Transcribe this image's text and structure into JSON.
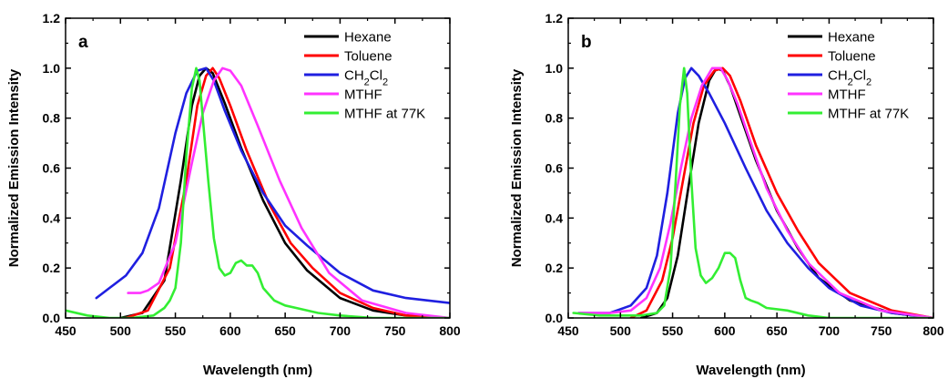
{
  "chart_data": [
    {
      "type": "line",
      "panel_label": "a",
      "xlabel": "Wavelength (nm)",
      "ylabel": "Normalized Emission Intensity",
      "xlim": [
        450,
        800
      ],
      "ylim": [
        0.0,
        1.2
      ],
      "xticks": [
        "450",
        "500",
        "550",
        "600",
        "650",
        "700",
        "750",
        "800"
      ],
      "yticks": [
        "0.0",
        "0.2",
        "0.4",
        "0.6",
        "0.8",
        "1.0",
        "1.2"
      ],
      "legend_position": "top-right",
      "series": [
        {
          "name": "Hexane",
          "color": "#000000",
          "x": [
            500,
            520,
            540,
            555,
            565,
            572,
            578,
            584,
            595,
            610,
            630,
            650,
            670,
            700,
            730,
            760,
            800
          ],
          "y": [
            0.0,
            0.02,
            0.15,
            0.55,
            0.85,
            0.97,
            1.0,
            0.98,
            0.86,
            0.68,
            0.47,
            0.3,
            0.19,
            0.08,
            0.03,
            0.01,
            0.0
          ]
        },
        {
          "name": "Toluene",
          "color": "#ff0000",
          "x": [
            505,
            525,
            545,
            560,
            570,
            578,
            584,
            590,
            600,
            615,
            635,
            655,
            675,
            700,
            730,
            760,
            800
          ],
          "y": [
            0.0,
            0.03,
            0.2,
            0.55,
            0.85,
            0.97,
            1.0,
            0.96,
            0.85,
            0.67,
            0.46,
            0.3,
            0.2,
            0.1,
            0.04,
            0.01,
            0.0
          ]
        },
        {
          "name": "CH2Cl2",
          "color": "#1f1fe0",
          "x": [
            478,
            490,
            505,
            520,
            535,
            550,
            560,
            570,
            578,
            585,
            595,
            610,
            630,
            650,
            670,
            700,
            730,
            760,
            800
          ],
          "y": [
            0.08,
            0.12,
            0.17,
            0.26,
            0.44,
            0.74,
            0.9,
            0.99,
            1.0,
            0.95,
            0.83,
            0.67,
            0.5,
            0.37,
            0.29,
            0.18,
            0.11,
            0.08,
            0.06
          ]
        },
        {
          "name": "MTHF",
          "color": "#ff33ff",
          "x": [
            507,
            518,
            525,
            535,
            550,
            565,
            575,
            585,
            593,
            600,
            610,
            625,
            645,
            665,
            690,
            720,
            760,
            800
          ],
          "y": [
            0.1,
            0.1,
            0.11,
            0.14,
            0.3,
            0.62,
            0.82,
            0.95,
            1.0,
            0.99,
            0.93,
            0.77,
            0.55,
            0.36,
            0.18,
            0.07,
            0.02,
            0.0
          ]
        },
        {
          "name": "MTHF at 77K",
          "color": "#33ee33",
          "x": [
            450,
            470,
            490,
            510,
            530,
            540,
            545,
            550,
            555,
            560,
            565,
            569,
            572,
            575,
            580,
            585,
            590,
            595,
            600,
            605,
            610,
            615,
            620,
            625,
            630,
            640,
            650,
            660,
            680,
            700,
            730,
            760,
            800
          ],
          "y": [
            0.03,
            0.01,
            0.0,
            0.0,
            0.01,
            0.04,
            0.07,
            0.12,
            0.3,
            0.65,
            0.92,
            1.0,
            0.95,
            0.8,
            0.55,
            0.32,
            0.2,
            0.17,
            0.18,
            0.22,
            0.23,
            0.21,
            0.21,
            0.18,
            0.12,
            0.07,
            0.05,
            0.04,
            0.02,
            0.01,
            0.0,
            0.0,
            0.0
          ]
        }
      ]
    },
    {
      "type": "line",
      "panel_label": "b",
      "xlabel": "Wavelength (nm)",
      "ylabel": "Normalized Emission Intensity",
      "xlim": [
        450,
        800
      ],
      "ylim": [
        0.0,
        1.2
      ],
      "xticks": [
        "450",
        "500",
        "550",
        "600",
        "650",
        "700",
        "750",
        "800"
      ],
      "yticks": [
        "0.0",
        "0.2",
        "0.4",
        "0.6",
        "0.8",
        "1.0",
        "1.2"
      ],
      "legend_position": "top-right",
      "series": [
        {
          "name": "Hexane",
          "color": "#000000",
          "x": [
            520,
            535,
            545,
            555,
            565,
            575,
            585,
            592,
            598,
            605,
            615,
            630,
            650,
            670,
            690,
            720,
            760,
            800
          ],
          "y": [
            0.0,
            0.02,
            0.08,
            0.25,
            0.52,
            0.78,
            0.95,
            1.0,
            0.99,
            0.93,
            0.81,
            0.63,
            0.43,
            0.28,
            0.16,
            0.07,
            0.02,
            0.0
          ]
        },
        {
          "name": "Toluene",
          "color": "#ff0000",
          "x": [
            510,
            525,
            540,
            550,
            560,
            570,
            580,
            590,
            598,
            605,
            615,
            630,
            650,
            670,
            690,
            720,
            760,
            800
          ],
          "y": [
            0.0,
            0.03,
            0.15,
            0.32,
            0.55,
            0.78,
            0.93,
            0.99,
            1.0,
            0.97,
            0.87,
            0.69,
            0.5,
            0.35,
            0.22,
            0.1,
            0.03,
            0.0
          ]
        },
        {
          "name": "CH2Cl2",
          "color": "#1f1fe0",
          "x": [
            460,
            490,
            510,
            525,
            535,
            545,
            555,
            562,
            568,
            575,
            585,
            600,
            620,
            640,
            660,
            680,
            700,
            730,
            760,
            800
          ],
          "y": [
            0.02,
            0.02,
            0.05,
            0.12,
            0.25,
            0.5,
            0.82,
            0.96,
            1.0,
            0.97,
            0.9,
            0.78,
            0.6,
            0.43,
            0.3,
            0.2,
            0.12,
            0.05,
            0.02,
            0.0
          ]
        },
        {
          "name": "MTHF",
          "color": "#ff33ff",
          "x": [
            460,
            490,
            510,
            525,
            538,
            548,
            558,
            568,
            578,
            588,
            596,
            603,
            612,
            625,
            640,
            660,
            680,
            710,
            750,
            800
          ],
          "y": [
            0.02,
            0.02,
            0.03,
            0.08,
            0.2,
            0.38,
            0.6,
            0.8,
            0.93,
            1.0,
            1.0,
            0.95,
            0.86,
            0.7,
            0.52,
            0.35,
            0.22,
            0.1,
            0.03,
            0.0
          ]
        },
        {
          "name": "MTHF at 77K",
          "color": "#33ee33",
          "x": [
            455,
            480,
            500,
            520,
            535,
            542,
            548,
            553,
            557,
            561,
            564,
            568,
            572,
            577,
            582,
            588,
            594,
            600,
            605,
            610,
            615,
            620,
            625,
            632,
            640,
            660,
            680,
            700,
            740,
            800
          ],
          "y": [
            0.02,
            0.01,
            0.01,
            0.01,
            0.02,
            0.05,
            0.2,
            0.55,
            0.85,
            1.0,
            0.9,
            0.55,
            0.28,
            0.17,
            0.14,
            0.16,
            0.2,
            0.26,
            0.26,
            0.24,
            0.15,
            0.08,
            0.07,
            0.06,
            0.04,
            0.03,
            0.01,
            0.0,
            0.0,
            0.0
          ]
        }
      ]
    }
  ]
}
